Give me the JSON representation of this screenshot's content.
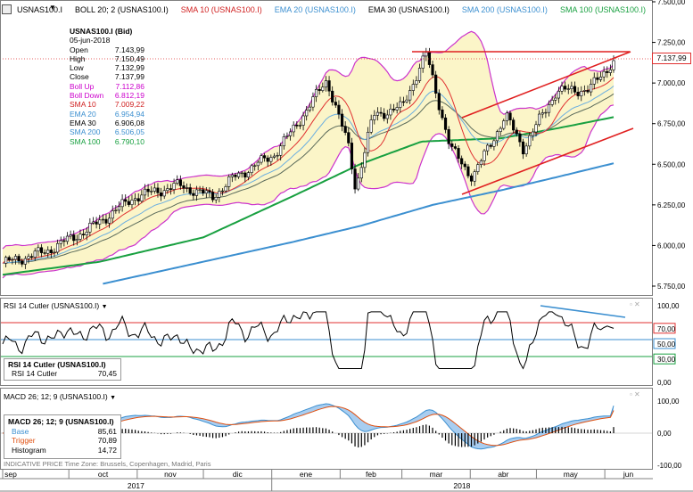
{
  "price_panel": {
    "legend": [
      {
        "label": "USNAS100.I",
        "color": "#000000"
      },
      {
        "label": "BOLL 20; 2 (USNAS100.I)",
        "color": "#000000"
      },
      {
        "label": "SMA 10 (USNAS100.I)",
        "color": "#d02020"
      },
      {
        "label": "EMA 20 (USNAS100.I)",
        "color": "#3b8fd0"
      },
      {
        "label": "EMA 30 (USNAS100.I)",
        "color": "#000000"
      },
      {
        "label": "SMA 200 (USNAS100.I)",
        "color": "#3b8fd0"
      },
      {
        "label": "SMA 100 (USNAS100.I)",
        "color": "#18a040"
      }
    ],
    "info_box": {
      "title": "USNAS100.I (Bid)",
      "date": "05-jun-2018",
      "rows": [
        {
          "label": "Open",
          "value": "7.143,99",
          "color": "#000000"
        },
        {
          "label": "High",
          "value": "7.150,49",
          "color": "#000000"
        },
        {
          "label": "Low",
          "value": "7.132,99",
          "color": "#000000"
        },
        {
          "label": "Close",
          "value": "7.137,99",
          "color": "#000000"
        },
        {
          "label": "Boll Up",
          "value": "7.112,86",
          "color": "#cc00cc"
        },
        {
          "label": "Boll Down",
          "value": "6.812,19",
          "color": "#cc00cc"
        },
        {
          "label": "SMA 10",
          "value": "7.009,22",
          "color": "#d02020"
        },
        {
          "label": "EMA 20",
          "value": "6.954,94",
          "color": "#3b8fd0"
        },
        {
          "label": "EMA 30",
          "value": "6.906,08",
          "color": "#000000"
        },
        {
          "label": "SMA 200",
          "value": "6.506,05",
          "color": "#3b8fd0"
        },
        {
          "label": "SMA 100",
          "value": "6.790,10",
          "color": "#18a040"
        }
      ]
    },
    "y_ticks": [
      "7.500,00",
      "7.250,00",
      "7.000,00",
      "6.750,00",
      "6.500,00",
      "6.250,00",
      "6.000,00",
      "5.750,00"
    ],
    "last_price_label": "7.137,99"
  },
  "rsi_panel": {
    "header": "RSI 14 Cutler (USNAS100.I)",
    "box_title": "RSI 14 Cutler (USNAS100.I)",
    "box_row_label": "RSI 14 Cutler",
    "box_row_value": "70,45",
    "y_ticks": [
      "100,00",
      "70,00",
      "50,00",
      "30,00",
      "0,00"
    ]
  },
  "macd_panel": {
    "header": "MACD 26; 12; 9 (USNAS100.I)",
    "box_title": "MACD 26; 12; 9 (USNAS100.I)",
    "rows": [
      {
        "label": "Base",
        "value": "85,61",
        "color": "#3b8fd0"
      },
      {
        "label": "Trigger",
        "value": "70,89",
        "color": "#e05010"
      },
      {
        "label": "Histogram",
        "value": "14,72",
        "color": "#000000"
      }
    ],
    "y_ticks": [
      "100,00",
      "0,00",
      "-100,00"
    ],
    "footer_note": "INDICATIVE PRICE   Time Zone: Brussels, Copenhagen, Madrid, Paris"
  },
  "x_axis": {
    "months": [
      "sep",
      "oct",
      "nov",
      "dic",
      "ene",
      "feb",
      "mar",
      "abr",
      "may",
      "jun"
    ],
    "years": [
      "2017",
      "2018"
    ]
  },
  "chart_data": {
    "type": "line",
    "title": "USNAS100.I",
    "x_start": "2017-09-01",
    "x_end": "2018-06-05",
    "ylim": [
      5750,
      7500
    ],
    "series": [
      {
        "name": "USNAS100.I",
        "color": "#000000",
        "dates": [
          "2017-09-01",
          "2017-09-20",
          "2017-10-10",
          "2017-10-31",
          "2017-11-20",
          "2017-12-05",
          "2017-12-15",
          "2018-01-02",
          "2018-01-10",
          "2018-01-26",
          "2018-02-05",
          "2018-02-08",
          "2018-02-16",
          "2018-03-01",
          "2018-03-12",
          "2018-03-23",
          "2018-04-02",
          "2018-04-17",
          "2018-04-25",
          "2018-05-10",
          "2018-05-25",
          "2018-06-05"
        ],
        "values": [
          5890,
          5960,
          6100,
          6300,
          6370,
          6300,
          6420,
          6560,
          6700,
          7020,
          6600,
          6350,
          6800,
          6850,
          7180,
          6600,
          6420,
          6800,
          6600,
          6950,
          6960,
          7138
        ]
      },
      {
        "name": "SMA 200",
        "color": "#3b8fd0",
        "dates": [
          "2017-10-15",
          "2017-12-01",
          "2018-01-10",
          "2018-02-10",
          "2018-03-15",
          "2018-04-15",
          "2018-05-10",
          "2018-06-05"
        ],
        "values": [
          5760,
          5900,
          6020,
          6120,
          6250,
          6340,
          6420,
          6506
        ]
      },
      {
        "name": "SMA 100",
        "color": "#18a040",
        "dates": [
          "2017-09-01",
          "2017-10-15",
          "2017-12-01",
          "2018-01-10",
          "2018-02-10",
          "2018-03-10",
          "2018-04-15",
          "2018-05-10",
          "2018-06-05"
        ],
        "values": [
          5820,
          5900,
          6050,
          6300,
          6500,
          6640,
          6660,
          6720,
          6790
        ]
      }
    ],
    "rsi": {
      "last": 70.45,
      "levels": [
        70,
        50,
        30
      ],
      "ylim": [
        0,
        100
      ]
    },
    "macd": {
      "base": 85.61,
      "trigger": 70.89,
      "histogram": 14.72,
      "ylim": [
        -100,
        100
      ]
    }
  }
}
